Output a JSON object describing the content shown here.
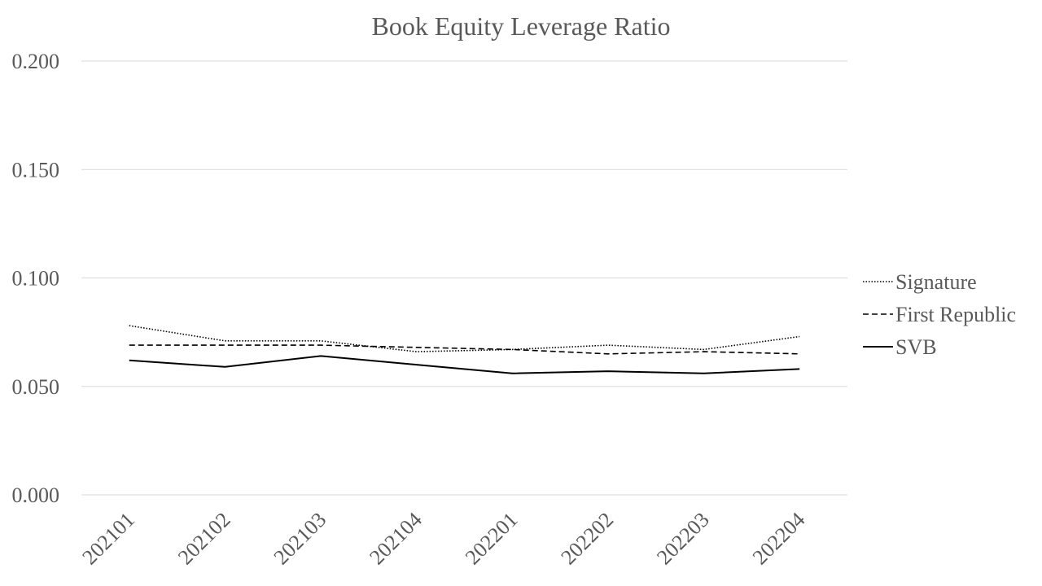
{
  "chart_data": {
    "type": "line",
    "title": "Book Equity Leverage Ratio",
    "xlabel": "",
    "ylabel": "",
    "categories": [
      "202101",
      "202102",
      "202103",
      "202104",
      "202201",
      "202202",
      "202203",
      "202204"
    ],
    "y_ticks": [
      "0.000",
      "0.050",
      "0.100",
      "0.150",
      "0.200"
    ],
    "ylim": [
      0,
      0.2
    ],
    "grid": true,
    "legend_position": "right",
    "series": [
      {
        "name": "Signature",
        "style": "dotted",
        "color": "#000000",
        "values": [
          0.078,
          0.071,
          0.071,
          0.066,
          0.067,
          0.069,
          0.067,
          0.073
        ]
      },
      {
        "name": "First Republic",
        "style": "dashed",
        "color": "#000000",
        "values": [
          0.069,
          0.069,
          0.069,
          0.068,
          0.067,
          0.065,
          0.066,
          0.065
        ]
      },
      {
        "name": "SVB",
        "style": "solid",
        "color": "#000000",
        "values": [
          0.062,
          0.059,
          0.064,
          0.06,
          0.056,
          0.057,
          0.056,
          0.058
        ]
      }
    ]
  }
}
